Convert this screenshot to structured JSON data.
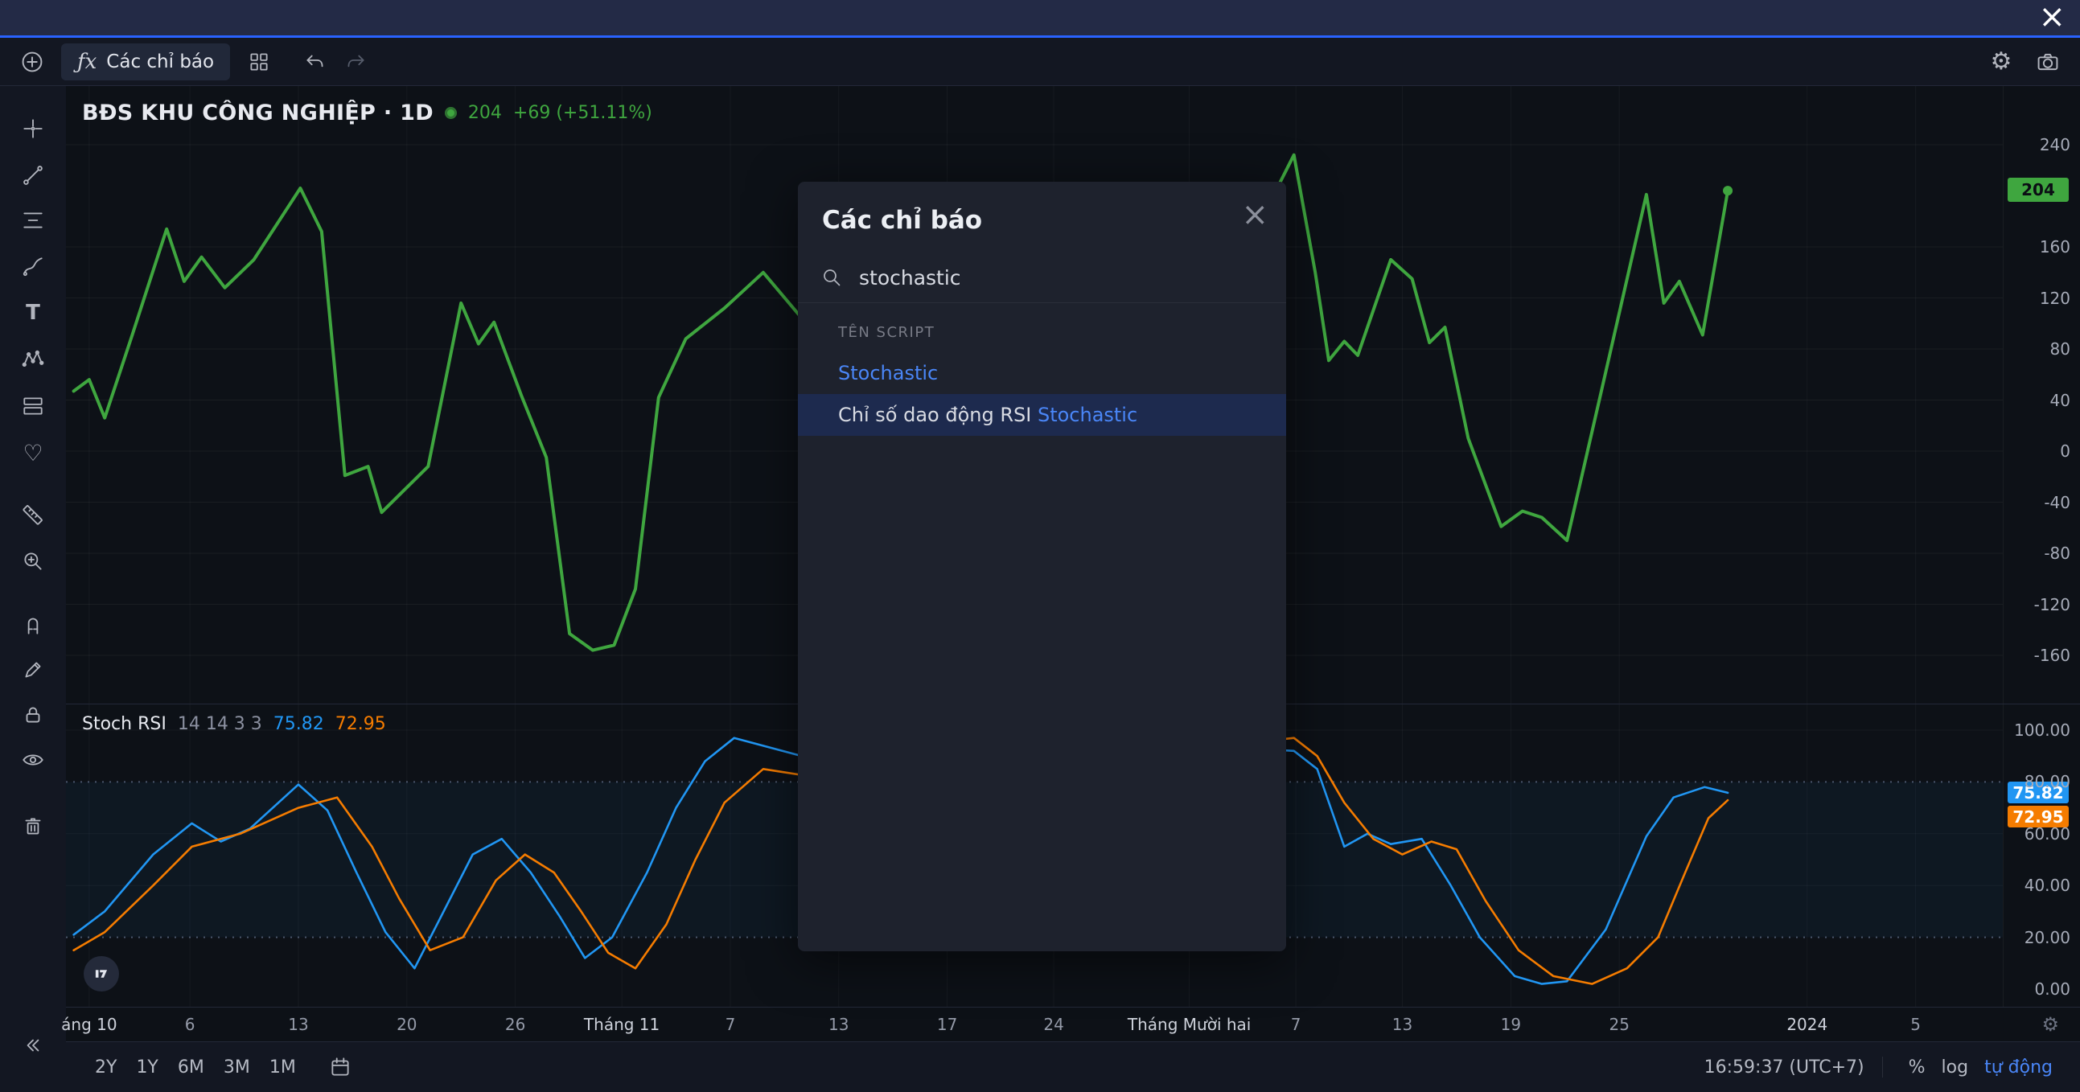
{
  "colors": {
    "accent": "#2962ff",
    "green": "#3fa63f",
    "stoch_k": "#2196f3",
    "stoch_d": "#f57c00",
    "link": "#4a86f7"
  },
  "toolbar": {
    "indicators_label": "Các chỉ báo"
  },
  "symbol": {
    "title": "BĐS KHU CÔNG NGHIỆP · 1D",
    "price": "204",
    "change": "+69 (+51.11%)"
  },
  "price_axis": {
    "ticks": [
      240,
      160,
      120,
      80,
      40,
      0,
      -40,
      -80,
      -120,
      -160
    ],
    "current_badge": "204"
  },
  "stoch_panel": {
    "label": "Stoch RSI",
    "params": "14 14 3 3",
    "k_value": "75.82",
    "d_value": "72.95",
    "ticks": [
      "100.00",
      "80.00",
      "60.00",
      "40.00",
      "20.00",
      "0.00"
    ],
    "k_badge": "75.82",
    "d_badge": "72.95"
  },
  "modal": {
    "title": "Các chỉ báo",
    "search_value": "stochastic",
    "section_header": "TÊN SCRIPT",
    "results": [
      {
        "prefix": "",
        "link": "Stochastic",
        "selected": false
      },
      {
        "prefix": "Chỉ số dao động RSI ",
        "link": "Stochastic",
        "selected": true
      }
    ]
  },
  "time_axis": {
    "labels": [
      {
        "text": "áng 10",
        "f": 0.012,
        "major": true
      },
      {
        "text": "6",
        "f": 0.064
      },
      {
        "text": "13",
        "f": 0.12
      },
      {
        "text": "20",
        "f": 0.176
      },
      {
        "text": "26",
        "f": 0.232
      },
      {
        "text": "Tháng 11",
        "f": 0.287,
        "major": true
      },
      {
        "text": "7",
        "f": 0.343
      },
      {
        "text": "13",
        "f": 0.399
      },
      {
        "text": "17",
        "f": 0.455
      },
      {
        "text": "24",
        "f": 0.51
      },
      {
        "text": "Tháng Mười hai",
        "f": 0.58,
        "major": true
      },
      {
        "text": "7",
        "f": 0.635
      },
      {
        "text": "13",
        "f": 0.69
      },
      {
        "text": "19",
        "f": 0.746
      },
      {
        "text": "25",
        "f": 0.802
      },
      {
        "text": "2024",
        "f": 0.899,
        "major": true
      },
      {
        "text": "5",
        "f": 0.955
      }
    ]
  },
  "bottom_bar": {
    "ranges": [
      "2Y",
      "1Y",
      "6M",
      "3M",
      "1M"
    ],
    "clock": "16:59:37 (UTC+7)",
    "percent_label": "%",
    "log_label": "log",
    "auto_label": "tự động"
  },
  "chart_data": [
    {
      "id": "price",
      "type": "line",
      "name": "BĐS KHU CÔNG NGHIỆP · 1D",
      "color": "#3fa63f",
      "line_width": 4,
      "last_value": 204,
      "ylim": [
        -198,
        286
      ],
      "y_ticks": [
        240,
        160,
        120,
        80,
        40,
        0,
        -40,
        -80,
        -120,
        -160
      ],
      "x_note": "f = fraction of plot width, Oct 2023 - Jan 2024 daily",
      "points": [
        [
          0.004,
          47
        ],
        [
          0.012,
          56
        ],
        [
          0.02,
          26
        ],
        [
          0.034,
          90
        ],
        [
          0.052,
          174
        ],
        [
          0.061,
          133
        ],
        [
          0.07,
          152
        ],
        [
          0.082,
          128
        ],
        [
          0.097,
          150
        ],
        [
          0.121,
          206
        ],
        [
          0.132,
          172
        ],
        [
          0.144,
          -19
        ],
        [
          0.156,
          -12
        ],
        [
          0.163,
          -48
        ],
        [
          0.175,
          -30
        ],
        [
          0.187,
          -12
        ],
        [
          0.204,
          116
        ],
        [
          0.213,
          84
        ],
        [
          0.221,
          101
        ],
        [
          0.235,
          44
        ],
        [
          0.248,
          -5
        ],
        [
          0.26,
          -143
        ],
        [
          0.272,
          -156
        ],
        [
          0.283,
          -152
        ],
        [
          0.294,
          -108
        ],
        [
          0.306,
          42
        ],
        [
          0.32,
          88
        ],
        [
          0.34,
          112
        ],
        [
          0.36,
          140
        ],
        [
          0.385,
          95
        ],
        [
          0.41,
          160
        ],
        [
          0.435,
          120
        ],
        [
          0.46,
          190
        ],
        [
          0.485,
          150
        ],
        [
          0.51,
          205
        ],
        [
          0.535,
          160
        ],
        [
          0.56,
          185
        ],
        [
          0.585,
          140
        ],
        [
          0.61,
          170
        ],
        [
          0.625,
          205
        ],
        [
          0.634,
          232
        ],
        [
          0.645,
          140
        ],
        [
          0.652,
          71
        ],
        [
          0.66,
          86
        ],
        [
          0.667,
          75
        ],
        [
          0.684,
          150
        ],
        [
          0.695,
          135
        ],
        [
          0.704,
          85
        ],
        [
          0.712,
          97
        ],
        [
          0.724,
          10
        ],
        [
          0.741,
          -59
        ],
        [
          0.752,
          -47
        ],
        [
          0.762,
          -52
        ],
        [
          0.775,
          -70
        ],
        [
          0.792,
          42
        ],
        [
          0.816,
          201
        ],
        [
          0.825,
          116
        ],
        [
          0.833,
          133
        ],
        [
          0.845,
          91
        ],
        [
          0.858,
          204
        ]
      ]
    },
    {
      "id": "stoch_rsi",
      "type": "line",
      "name": "Stoch RSI (14 14 3 3)",
      "band": [
        20,
        80
      ],
      "ticks": [
        0,
        20,
        40,
        60,
        80,
        100
      ],
      "ylim": [
        0,
        117
      ],
      "series": [
        {
          "name": "%K",
          "color": "#2196f3",
          "last": 75.82,
          "points": [
            [
              0.004,
              21
            ],
            [
              0.02,
              30
            ],
            [
              0.045,
              52
            ],
            [
              0.065,
              64
            ],
            [
              0.08,
              57
            ],
            [
              0.095,
              62
            ],
            [
              0.12,
              79
            ],
            [
              0.135,
              69
            ],
            [
              0.15,
              45
            ],
            [
              0.165,
              22
            ],
            [
              0.18,
              8
            ],
            [
              0.195,
              30
            ],
            [
              0.21,
              52
            ],
            [
              0.225,
              58
            ],
            [
              0.24,
              45
            ],
            [
              0.255,
              28
            ],
            [
              0.268,
              12
            ],
            [
              0.282,
              20
            ],
            [
              0.3,
              45
            ],
            [
              0.315,
              70
            ],
            [
              0.33,
              88
            ],
            [
              0.345,
              97
            ],
            [
              0.38,
              90
            ],
            [
              0.42,
              75
            ],
            [
              0.46,
              62
            ],
            [
              0.5,
              72
            ],
            [
              0.54,
              88
            ],
            [
              0.58,
              95
            ],
            [
              0.61,
              93
            ],
            [
              0.634,
              92
            ],
            [
              0.646,
              85
            ],
            [
              0.66,
              55
            ],
            [
              0.672,
              60
            ],
            [
              0.684,
              56
            ],
            [
              0.7,
              58
            ],
            [
              0.715,
              40
            ],
            [
              0.73,
              20
            ],
            [
              0.748,
              5
            ],
            [
              0.762,
              2
            ],
            [
              0.775,
              3
            ],
            [
              0.795,
              23
            ],
            [
              0.816,
              59
            ],
            [
              0.83,
              74
            ],
            [
              0.846,
              78
            ],
            [
              0.858,
              75.82
            ]
          ]
        },
        {
          "name": "%D",
          "color": "#f57c00",
          "last": 72.95,
          "points": [
            [
              0.004,
              15
            ],
            [
              0.02,
              22
            ],
            [
              0.045,
              40
            ],
            [
              0.065,
              55
            ],
            [
              0.09,
              60
            ],
            [
              0.12,
              70
            ],
            [
              0.14,
              74
            ],
            [
              0.158,
              55
            ],
            [
              0.172,
              35
            ],
            [
              0.188,
              15
            ],
            [
              0.205,
              20
            ],
            [
              0.222,
              42
            ],
            [
              0.237,
              52
            ],
            [
              0.252,
              45
            ],
            [
              0.266,
              30
            ],
            [
              0.28,
              14
            ],
            [
              0.294,
              8
            ],
            [
              0.31,
              25
            ],
            [
              0.325,
              50
            ],
            [
              0.34,
              72
            ],
            [
              0.36,
              85
            ],
            [
              0.42,
              78
            ],
            [
              0.47,
              65
            ],
            [
              0.52,
              75
            ],
            [
              0.57,
              88
            ],
            [
              0.61,
              95
            ],
            [
              0.634,
              97
            ],
            [
              0.646,
              90
            ],
            [
              0.66,
              72
            ],
            [
              0.675,
              58
            ],
            [
              0.69,
              52
            ],
            [
              0.705,
              57
            ],
            [
              0.718,
              54
            ],
            [
              0.733,
              34
            ],
            [
              0.75,
              15
            ],
            [
              0.768,
              5
            ],
            [
              0.788,
              2
            ],
            [
              0.806,
              8
            ],
            [
              0.822,
              20
            ],
            [
              0.836,
              45
            ],
            [
              0.848,
              66
            ],
            [
              0.858,
              72.95
            ]
          ]
        }
      ]
    }
  ]
}
